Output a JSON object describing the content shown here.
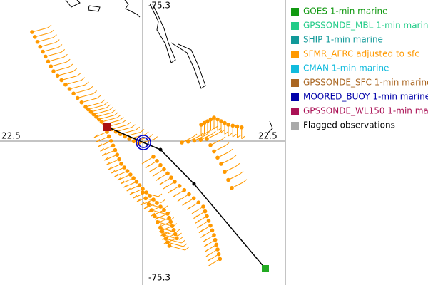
{
  "map": {
    "labels": {
      "top": "-75.3",
      "bottom": "-75.3",
      "left": "22.5",
      "right": "22.5"
    },
    "legend": [
      {
        "label": "GOES 1-min marine",
        "color": "#119911",
        "text_color": "#119911"
      },
      {
        "label": "GPSSONDE_MBL 1-min marine",
        "color": "#22cc88",
        "text_color": "#22cc88"
      },
      {
        "label": "SHIP 1-min marine",
        "color": "#119999",
        "text_color": "#119999"
      },
      {
        "label": "SFMR_AFRC adjusted to sfc",
        "color": "#ff9900",
        "text_color": "#ff9900"
      },
      {
        "label": "CMAN 1-min marine",
        "color": "#11bbdd",
        "text_color": "#11bbdd"
      },
      {
        "label": "GPSSONDE_SFC 1-min marine",
        "color": "#aa6622",
        "text_color": "#aa6622"
      },
      {
        "label": "MOORED_BUOY 1-min marine",
        "color": "#0000aa",
        "text_color": "#0000aa"
      },
      {
        "label": "GPSSONDE_WL150 1-min mar",
        "color": "#aa1155",
        "text_color": "#aa1155"
      },
      {
        "label": "Flagged observations",
        "color": "#aaaaaa",
        "text_color": "#000000"
      }
    ]
  }
}
